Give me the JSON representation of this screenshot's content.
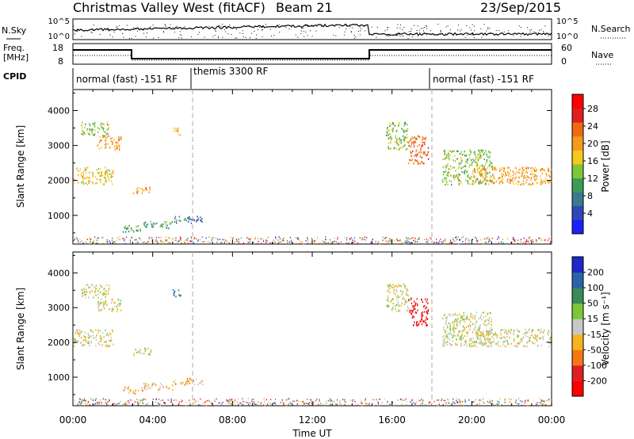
{
  "header": {
    "station": "Christmas Valley West (fitACF)",
    "beam": "Beam 21",
    "date": "23/Sep/2015"
  },
  "top_panels": {
    "nsky_label": "N.Sky",
    "nsky_ticks": [
      "10^5",
      "10^0"
    ],
    "nsearch_label": "N.Search",
    "nsearch_ticks": [
      "10^5",
      "10^0"
    ],
    "freq_label": "Freq.",
    "freq_unit": "[MHz]",
    "freq_ticks": [
      "18",
      "8"
    ],
    "nave_label": "Nave",
    "nave_ticks": [
      "60",
      "0"
    ],
    "cpid_label": "CPID",
    "cpid_segments": [
      {
        "label": "normal (fast) -151 RF",
        "start": 0,
        "end": 6
      },
      {
        "label": "themis 3300 RF",
        "start": 6,
        "end": 18
      },
      {
        "label": "normal (fast) -151 RF",
        "start": 18,
        "end": 24
      }
    ]
  },
  "chart_data": [
    {
      "type": "heatmap",
      "name": "power",
      "ylabel": "Slant Range [km]",
      "xlabel": "Time UT",
      "x_ticks": [
        "00:00",
        "04:00",
        "08:00",
        "12:00",
        "16:00",
        "20:00",
        "00:00"
      ],
      "xlim_hours": [
        0,
        24
      ],
      "y_ticks": [
        1000,
        2000,
        3000,
        4000
      ],
      "ylim_km": [
        180,
        4600
      ],
      "colorbar_label": "Power [dB]",
      "colorbar_ticks": [
        "4",
        "8",
        "12",
        "16",
        "20",
        "24",
        "28"
      ],
      "colorbar_colors": [
        "#1e1eff",
        "#2f48b8",
        "#3b7a8c",
        "#3e9a5a",
        "#7cc83a",
        "#f5c81e",
        "#f59a1e",
        "#f06a14",
        "#e02020",
        "#ff0000"
      ],
      "clusters": [
        {
          "t": [
            0.0,
            2.0
          ],
          "r": [
            1900,
            2400
          ],
          "level": 5
        },
        {
          "t": [
            0.4,
            1.8
          ],
          "r": [
            3300,
            3700
          ],
          "level": 4
        },
        {
          "t": [
            1.2,
            2.4
          ],
          "r": [
            2900,
            3300
          ],
          "level": 6
        },
        {
          "t": [
            3.0,
            3.9
          ],
          "r": [
            1650,
            1850
          ],
          "level": 6
        },
        {
          "t": [
            5.0,
            5.4
          ],
          "r": [
            3300,
            3550
          ],
          "level": 6
        },
        {
          "t": [
            2.5,
            3.5
          ],
          "r": [
            550,
            750
          ],
          "level": 3
        },
        {
          "t": [
            3.5,
            5.0
          ],
          "r": [
            650,
            850
          ],
          "level": 3
        },
        {
          "t": [
            5.0,
            6.5
          ],
          "r": [
            800,
            1000
          ],
          "level": 2
        },
        {
          "t": [
            15.7,
            16.8
          ],
          "r": [
            2900,
            3700
          ],
          "level": 4
        },
        {
          "t": [
            16.8,
            17.8
          ],
          "r": [
            2500,
            3300
          ],
          "level": 7
        },
        {
          "t": [
            18.5,
            21.0
          ],
          "r": [
            1900,
            2900
          ],
          "level": 4
        },
        {
          "t": [
            20.0,
            24.0
          ],
          "r": [
            1900,
            2400
          ],
          "level": 6
        }
      ],
      "ground_scatter_band": {
        "r": [
          200,
          400
        ],
        "t": [
          0,
          24
        ]
      }
    },
    {
      "type": "heatmap",
      "name": "velocity",
      "ylabel": "Slant Range [km]",
      "xlabel": "Time UT",
      "x_ticks": [
        "00:00",
        "04:00",
        "08:00",
        "12:00",
        "16:00",
        "20:00",
        "00:00"
      ],
      "xlim_hours": [
        0,
        24
      ],
      "y_ticks": [
        1000,
        2000,
        3000,
        4000
      ],
      "ylim_km": [
        180,
        4600
      ],
      "colorbar_label": "Velocity [m s⁻¹]",
      "colorbar_ticks": [
        "200",
        "100",
        "50",
        "15",
        "-15",
        "-50",
        "-100",
        "-200"
      ],
      "colorbar_colors": [
        "#1e28c8",
        "#2a64a8",
        "#3c8a5a",
        "#7cc83a",
        "#c8c8c8",
        "#f5b41e",
        "#f57814",
        "#e02020",
        "#ff0000"
      ],
      "clusters": [
        {
          "t": [
            0.0,
            2.0
          ],
          "r": [
            1900,
            2400
          ],
          "level": 4
        },
        {
          "t": [
            0.4,
            1.8
          ],
          "r": [
            3300,
            3700
          ],
          "level": 4
        },
        {
          "t": [
            1.2,
            2.4
          ],
          "r": [
            2900,
            3300
          ],
          "level": 4
        },
        {
          "t": [
            3.0,
            3.9
          ],
          "r": [
            1650,
            1850
          ],
          "level": 4
        },
        {
          "t": [
            5.0,
            5.4
          ],
          "r": [
            3300,
            3550
          ],
          "level": 1
        },
        {
          "t": [
            2.5,
            3.5
          ],
          "r": [
            550,
            750
          ],
          "level": 5
        },
        {
          "t": [
            3.5,
            5.0
          ],
          "r": [
            650,
            850
          ],
          "level": 5
        },
        {
          "t": [
            5.0,
            6.5
          ],
          "r": [
            800,
            1000
          ],
          "level": 5
        },
        {
          "t": [
            15.7,
            16.8
          ],
          "r": [
            2900,
            3700
          ],
          "level": 4
        },
        {
          "t": [
            16.8,
            17.8
          ],
          "r": [
            2500,
            3300
          ],
          "level": 8
        },
        {
          "t": [
            18.5,
            21.0
          ],
          "r": [
            1900,
            2900
          ],
          "level": 4
        },
        {
          "t": [
            20.0,
            24.0
          ],
          "r": [
            1900,
            2400
          ],
          "level": 4
        }
      ],
      "ground_scatter_band": {
        "r": [
          200,
          400
        ],
        "t": [
          0,
          24
        ]
      }
    }
  ]
}
